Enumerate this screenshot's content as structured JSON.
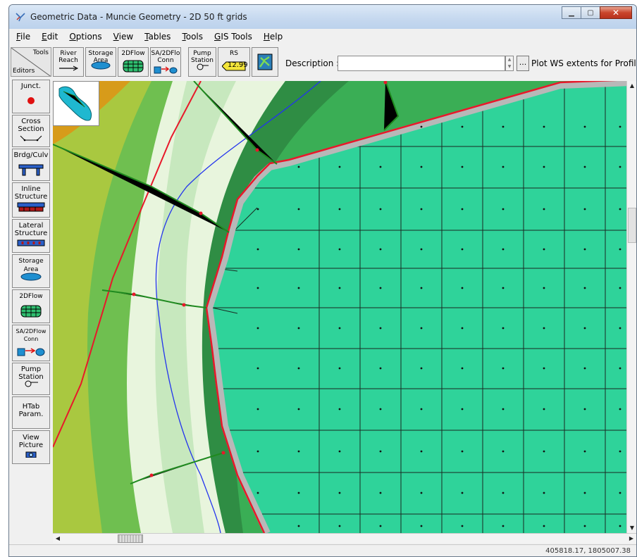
{
  "window": {
    "title": "Geometric Data - Muncie Geometry - 2D 50 ft grids"
  },
  "menu": [
    {
      "pre": "",
      "u": "F",
      "post": "ile"
    },
    {
      "pre": "",
      "u": "E",
      "post": "dit"
    },
    {
      "pre": "",
      "u": "O",
      "post": "ptions"
    },
    {
      "pre": "",
      "u": "V",
      "post": "iew"
    },
    {
      "pre": "",
      "u": "T",
      "post": "ables"
    },
    {
      "pre": "",
      "u": "T",
      "post": "ools"
    },
    {
      "pre": "",
      "u": "G",
      "post": "IS Tools"
    },
    {
      "pre": "",
      "u": "H",
      "post": "elp"
    }
  ],
  "toolbar": {
    "corner_top": "Tools",
    "corner_bottom": "Editors",
    "river_reach": [
      "River",
      "Reach"
    ],
    "storage_area": [
      "Storage",
      "Area"
    ],
    "flow2d": "2DFlow",
    "sa2d_conn": [
      "SA/2DFlo",
      "Conn"
    ],
    "pump_station": [
      "Pump",
      "Station"
    ],
    "rs": "RS",
    "rs_value": "12.99",
    "description_label": "Description :",
    "description_value": "",
    "ellipsis": "...",
    "plot_ws": "Plot WS extents for Profile:"
  },
  "side": {
    "junct": "Junct.",
    "cross_section": [
      "Cross",
      "Section"
    ],
    "brdg_culv": "Brdg/Culv",
    "inline_structure": [
      "Inline",
      "Structure"
    ],
    "lateral_structure": [
      "Lateral",
      "Structure"
    ],
    "storage_area": [
      "Storage",
      "Area"
    ],
    "flow2d": "2DFlow",
    "sa2d_conn": [
      "SA/2DFlow",
      "Conn"
    ],
    "pump_station": [
      "Pump",
      "Station"
    ],
    "htab": [
      "HTab",
      "Param."
    ],
    "view_picture": [
      "View",
      "Picture"
    ]
  },
  "status": {
    "coords": "405818.17, 1805007.38"
  },
  "colors": {
    "mesh_fill": "#2fd39a",
    "mesh_line": "#1a2a22",
    "boundary": "#e8182a",
    "stream": "#2233ee",
    "xsection": "#1f8a1f",
    "terrain_low": "#e9f5d8",
    "terrain_mid": "#59c55a",
    "terrain_high": "#cf8a14"
  }
}
